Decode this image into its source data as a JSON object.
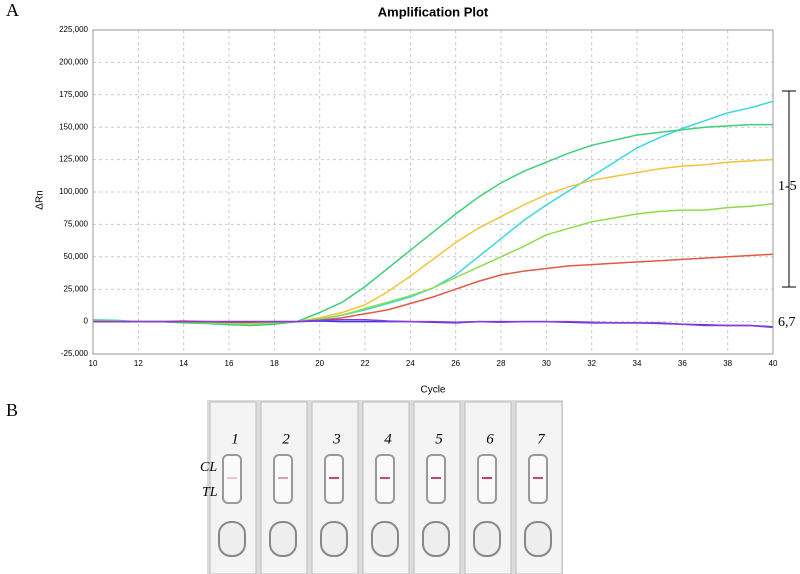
{
  "panel_labels": [
    "A",
    "B"
  ],
  "chart_data": {
    "type": "line",
    "title": "Amplification Plot",
    "x_label": "Cycle",
    "y_label": "ΔRn",
    "x": [
      10,
      11,
      12,
      13,
      14,
      15,
      16,
      17,
      18,
      19,
      20,
      21,
      22,
      23,
      24,
      25,
      26,
      27,
      28,
      29,
      30,
      31,
      32,
      33,
      34,
      35,
      36,
      37,
      38,
      39,
      40
    ],
    "series": [
      {
        "color": "#38d9e0",
        "values": [
          1500,
          1000,
          0,
          0,
          -500,
          -1000,
          -1500,
          -2000,
          -1500,
          0,
          2000,
          5000,
          9000,
          14000,
          19000,
          26000,
          36000,
          50000,
          64000,
          78000,
          90000,
          101000,
          112000,
          123000,
          134000,
          142000,
          149000,
          155000,
          161000,
          165000,
          170000
        ]
      },
      {
        "color": "#3ecf7a",
        "values": [
          1000,
          500,
          0,
          0,
          -1000,
          -1500,
          -2500,
          -3000,
          -2000,
          0,
          7000,
          15000,
          27000,
          41000,
          55000,
          69000,
          83000,
          96000,
          107000,
          116000,
          123000,
          130000,
          136000,
          140000,
          144000,
          146000,
          148000,
          150000,
          151000,
          152000,
          152000
        ]
      },
      {
        "color": "#f0c43c",
        "values": [
          500,
          500,
          0,
          0,
          0,
          -500,
          -1000,
          -1000,
          -500,
          0,
          3000,
          7000,
          13000,
          23000,
          35000,
          48000,
          61000,
          72000,
          81000,
          90000,
          98000,
          104000,
          109000,
          112000,
          115000,
          118000,
          120000,
          121000,
          123000,
          124000,
          125000
        ]
      },
      {
        "color": "#8fdc4a",
        "values": [
          1000,
          500,
          0,
          0,
          -500,
          -1000,
          -1500,
          -2000,
          -1000,
          0,
          2000,
          5000,
          10000,
          15000,
          20000,
          26000,
          34000,
          42000,
          50000,
          58000,
          67000,
          72000,
          77000,
          80000,
          83000,
          85000,
          86000,
          86000,
          88000,
          89000,
          91000
        ]
      },
      {
        "color": "#e05a46",
        "values": [
          0,
          0,
          0,
          0,
          500,
          0,
          -500,
          -500,
          0,
          0,
          1000,
          3000,
          6000,
          9000,
          14000,
          19000,
          25000,
          31000,
          36000,
          39000,
          41000,
          43000,
          44000,
          45000,
          46000,
          47000,
          48000,
          49000,
          50000,
          51000,
          52000
        ]
      },
      {
        "color": "#3a3ae8",
        "values": [
          0,
          0,
          0,
          0,
          0,
          0,
          0,
          0,
          0,
          0,
          500,
          0,
          0,
          0,
          0,
          -500,
          -1000,
          0,
          0,
          0,
          0,
          -500,
          -1000,
          -1000,
          -1000,
          -1500,
          -2000,
          -2500,
          -3000,
          -3000,
          -4000
        ]
      },
      {
        "color": "#8b3ad8",
        "values": [
          0,
          0,
          0,
          0,
          0,
          0,
          0,
          0,
          0,
          0,
          1000,
          1500,
          1500,
          500,
          0,
          0,
          -500,
          0,
          -500,
          0,
          0,
          0,
          -500,
          -1000,
          -1000,
          -1000,
          -2000,
          -3000,
          -3000,
          -3000,
          -4500
        ]
      }
    ],
    "xlim": [
      10,
      40
    ],
    "xticks": [
      10,
      12,
      14,
      16,
      18,
      20,
      22,
      24,
      26,
      28,
      30,
      32,
      34,
      36,
      38,
      40
    ],
    "ylim": [
      -25000,
      225000
    ],
    "yticks": [
      {
        "value": -25000,
        "label": "-25,000"
      },
      0,
      {
        "value": 25000,
        "label": "25,000"
      },
      {
        "value": 50000,
        "label": "50,000"
      },
      {
        "value": 75000,
        "label": "75,000"
      },
      {
        "value": 100000,
        "label": "100,000"
      },
      {
        "value": 125000,
        "label": "125,000"
      },
      {
        "value": 150000,
        "label": "150,000"
      },
      {
        "value": 175000,
        "label": "175,000"
      },
      {
        "value": 200000,
        "label": "200,000"
      },
      {
        "value": 225000,
        "label": "225,000"
      }
    ],
    "grid": true,
    "annotations": [
      "1-5",
      "6,7"
    ]
  },
  "strips": {
    "numbers": [
      "1",
      "2",
      "3",
      "4",
      "5",
      "6",
      "7"
    ],
    "control_line": "CL",
    "test_line": "TL"
  }
}
